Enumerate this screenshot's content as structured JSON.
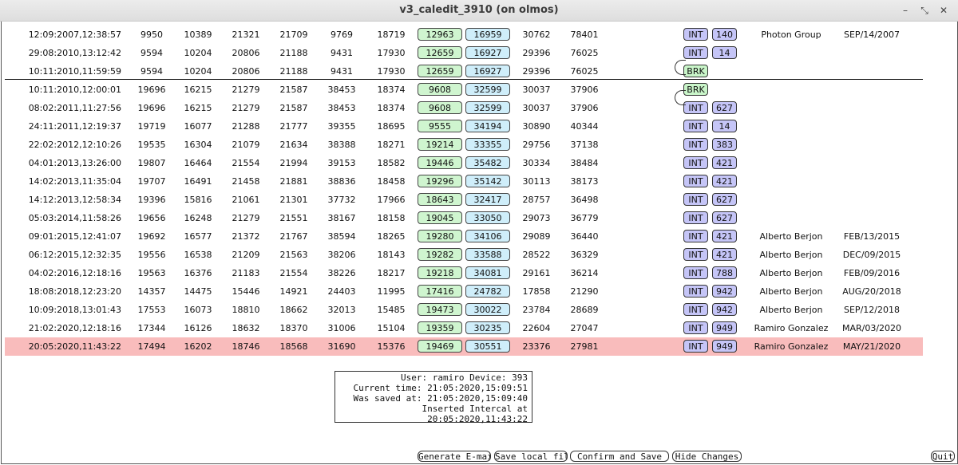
{
  "window": {
    "title": "v3_caledit_3910 (on olmos)",
    "controls": [
      "–",
      "⤡",
      "✕"
    ]
  },
  "rows": [
    {
      "ts": "12:09:2007,12:38:57",
      "v": [
        "9950",
        "10389",
        "21321",
        "21709",
        "9769",
        "18719"
      ],
      "g": "12963",
      "b": "16959",
      "w": [
        "30762",
        "78401"
      ],
      "tag": "INT",
      "num": "140",
      "user": "Photon Group",
      "date": "SEP/14/2007"
    },
    {
      "ts": "29:08:2010,13:12:42",
      "v": [
        "9594",
        "10204",
        "20806",
        "21188",
        "9431",
        "17930"
      ],
      "g": "12659",
      "b": "16927",
      "w": [
        "29396",
        "76025"
      ],
      "tag": "INT",
      "num": "14",
      "user": "",
      "date": ""
    },
    {
      "ts": "10:11:2010,11:59:59",
      "v": [
        "9594",
        "10204",
        "20806",
        "21188",
        "9431",
        "17930"
      ],
      "g": "12659",
      "b": "16927",
      "w": [
        "29396",
        "76025"
      ],
      "tag": "BRK",
      "num": "",
      "user": "",
      "date": ""
    },
    {
      "ts": "10:11:2010,12:00:01",
      "v": [
        "19696",
        "16215",
        "21279",
        "21587",
        "38453",
        "18374"
      ],
      "g": "9608",
      "b": "32599",
      "w": [
        "30037",
        "37906"
      ],
      "tag": "BRK",
      "num": "",
      "user": "",
      "date": ""
    },
    {
      "ts": "08:02:2011,11:27:56",
      "v": [
        "19696",
        "16215",
        "21279",
        "21587",
        "38453",
        "18374"
      ],
      "g": "9608",
      "b": "32599",
      "w": [
        "30037",
        "37906"
      ],
      "tag": "INT",
      "num": "627",
      "user": "",
      "date": ""
    },
    {
      "ts": "24:11:2011,12:19:37",
      "v": [
        "19719",
        "16077",
        "21288",
        "21777",
        "39355",
        "18695"
      ],
      "g": "9555",
      "b": "34194",
      "w": [
        "30890",
        "40344"
      ],
      "tag": "INT",
      "num": "14",
      "user": "",
      "date": ""
    },
    {
      "ts": "22:02:2012,12:10:26",
      "v": [
        "19535",
        "16304",
        "21079",
        "21634",
        "38388",
        "18271"
      ],
      "g": "19214",
      "b": "33355",
      "w": [
        "29756",
        "37138"
      ],
      "tag": "INT",
      "num": "383",
      "user": "",
      "date": ""
    },
    {
      "ts": "04:01:2013,13:26:00",
      "v": [
        "19807",
        "16464",
        "21554",
        "21994",
        "39153",
        "18582"
      ],
      "g": "19446",
      "b": "35482",
      "w": [
        "30334",
        "38484"
      ],
      "tag": "INT",
      "num": "421",
      "user": "",
      "date": ""
    },
    {
      "ts": "14:02:2013,11:35:04",
      "v": [
        "19707",
        "16491",
        "21458",
        "21881",
        "38836",
        "18458"
      ],
      "g": "19296",
      "b": "35142",
      "w": [
        "30113",
        "38173"
      ],
      "tag": "INT",
      "num": "421",
      "user": "",
      "date": ""
    },
    {
      "ts": "14:12:2013,12:58:34",
      "v": [
        "19396",
        "15816",
        "21061",
        "21301",
        "37732",
        "17966"
      ],
      "g": "18643",
      "b": "32417",
      "w": [
        "28757",
        "36498"
      ],
      "tag": "INT",
      "num": "627",
      "user": "",
      "date": ""
    },
    {
      "ts": "05:03:2014,11:58:26",
      "v": [
        "19656",
        "16248",
        "21279",
        "21551",
        "38167",
        "18158"
      ],
      "g": "19045",
      "b": "33050",
      "w": [
        "29073",
        "36779"
      ],
      "tag": "INT",
      "num": "627",
      "user": "",
      "date": ""
    },
    {
      "ts": "09:01:2015,12:41:07",
      "v": [
        "19692",
        "16577",
        "21372",
        "21767",
        "38594",
        "18265"
      ],
      "g": "19280",
      "b": "34106",
      "w": [
        "29089",
        "36440"
      ],
      "tag": "INT",
      "num": "421",
      "user": "Alberto Berjon",
      "date": "FEB/13/2015"
    },
    {
      "ts": "06:12:2015,12:32:35",
      "v": [
        "19556",
        "16538",
        "21209",
        "21563",
        "38206",
        "18143"
      ],
      "g": "19282",
      "b": "33588",
      "w": [
        "28522",
        "36329"
      ],
      "tag": "INT",
      "num": "421",
      "user": "Alberto Berjon",
      "date": "DEC/09/2015"
    },
    {
      "ts": "04:02:2016,12:18:16",
      "v": [
        "19563",
        "16376",
        "21183",
        "21554",
        "38226",
        "18217"
      ],
      "g": "19218",
      "b": "34081",
      "w": [
        "29161",
        "36214"
      ],
      "tag": "INT",
      "num": "788",
      "user": "Alberto Berjon",
      "date": "FEB/09/2016"
    },
    {
      "ts": "18:08:2018,12:23:20",
      "v": [
        "14357",
        "14475",
        "15446",
        "14921",
        "24403",
        "11995"
      ],
      "g": "17416",
      "b": "24782",
      "w": [
        "17858",
        "21290"
      ],
      "tag": "INT",
      "num": "942",
      "user": "Alberto Berjon",
      "date": "AUG/20/2018"
    },
    {
      "ts": "10:09:2018,13:01:43",
      "v": [
        "17553",
        "16073",
        "18810",
        "18662",
        "32013",
        "15485"
      ],
      "g": "19473",
      "b": "30022",
      "w": [
        "23784",
        "28689"
      ],
      "tag": "INT",
      "num": "942",
      "user": "Alberto Berjon",
      "date": "SEP/12/2018"
    },
    {
      "ts": "21:02:2020,12:18:16",
      "v": [
        "17344",
        "16126",
        "18632",
        "18370",
        "31006",
        "15104"
      ],
      "g": "19359",
      "b": "30235",
      "w": [
        "22604",
        "27047"
      ],
      "tag": "INT",
      "num": "949",
      "user": "Ramiro Gonzalez",
      "date": "MAR/03/2020"
    },
    {
      "ts": "20:05:2020,11:43:22",
      "v": [
        "17494",
        "16202",
        "18746",
        "18568",
        "31690",
        "15376"
      ],
      "g": "19469",
      "b": "30551",
      "w": [
        "23376",
        "27981"
      ],
      "tag": "INT",
      "num": "949",
      "user": "Ramiro Gonzalez",
      "date": "MAY/21/2020",
      "highlight": true
    }
  ],
  "info": {
    "user_line": "User: ramiro Device: 393",
    "current_time": "Current time: 21:05:2020,15:09:51",
    "saved_at": "Was saved at: 21:05:2020,15:09:40",
    "inserted": "Inserted Intercal at 20:05:2020,11:43:22"
  },
  "buttons": {
    "email": "Generate E-mail",
    "save_local": "Save local file",
    "confirm": "Confirm and Save",
    "hide": "Hide Changes",
    "quit": "Quit"
  }
}
